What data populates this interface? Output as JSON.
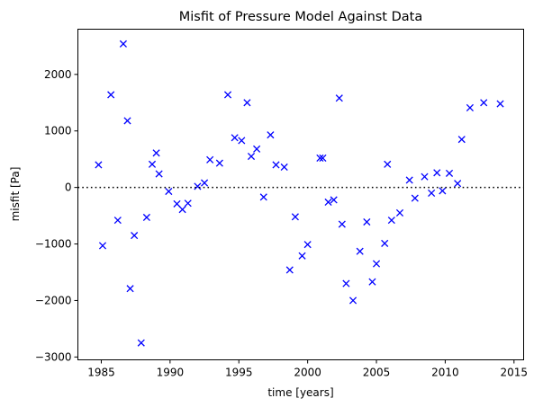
{
  "chart_data": {
    "type": "scatter",
    "title": "Misfit of Pressure Model Against Data",
    "xlabel": "time [years]",
    "ylabel": "misfit [Pa]",
    "xlim": [
      1983.3,
      2015.7
    ],
    "ylim": [
      -3050,
      2800
    ],
    "xticks": [
      1985,
      1990,
      1995,
      2000,
      2005,
      2010,
      2015
    ],
    "yticks": [
      -3000,
      -2000,
      -1000,
      0,
      1000,
      2000
    ],
    "xtick_labels": [
      "1985",
      "1990",
      "1995",
      "2000",
      "2005",
      "2010",
      "2015"
    ],
    "ytick_labels": [
      "−3000",
      "−2000",
      "−1000",
      "0",
      "1000",
      "2000"
    ],
    "grid": false,
    "legend": "none",
    "marker": "x",
    "marker_color": "#0000ff",
    "reference_line": {
      "y": 0,
      "style": "dotted",
      "color": "#000000"
    },
    "series": [
      {
        "x": [
          1984.8,
          1985.1,
          1985.7,
          1986.2,
          1986.6,
          1986.9,
          1987.1,
          1987.4,
          1987.9,
          1988.3,
          1988.7,
          1989.0,
          1989.2,
          1989.9,
          1990.5,
          1990.9,
          1991.3,
          1992.0,
          1992.5,
          1992.9,
          1993.6,
          1994.2,
          1994.7,
          1995.2,
          1995.6,
          1995.9,
          1996.3,
          1996.8,
          1997.3,
          1997.7,
          1998.3,
          1998.7,
          1999.1,
          1999.6,
          2000.0,
          2000.9,
          2001.1,
          2001.5,
          2001.9,
          2002.3,
          2002.5,
          2002.8,
          2003.3,
          2003.8,
          2004.3,
          2004.7,
          2005.0,
          2005.6,
          2005.8,
          2006.1,
          2006.7,
          2007.4,
          2007.8,
          2008.5,
          2009.0,
          2009.4,
          2009.8,
          2010.3,
          2010.9,
          2011.2,
          2011.8,
          2012.8,
          2014.0
        ],
        "y": [
          400,
          -1030,
          1640,
          -580,
          2540,
          1180,
          -1790,
          -850,
          -2750,
          -530,
          410,
          610,
          240,
          -70,
          -290,
          -390,
          -280,
          20,
          80,
          490,
          430,
          1640,
          880,
          830,
          1500,
          550,
          680,
          -170,
          930,
          400,
          360,
          -1460,
          -520,
          -1210,
          -1010,
          520,
          520,
          -260,
          -220,
          1580,
          -650,
          -1700,
          -2000,
          -1130,
          -610,
          -1670,
          -1350,
          -990,
          410,
          -580,
          -450,
          130,
          -190,
          190,
          -100,
          260,
          -60,
          250,
          70,
          850,
          1410,
          1500,
          1480
        ]
      }
    ]
  }
}
